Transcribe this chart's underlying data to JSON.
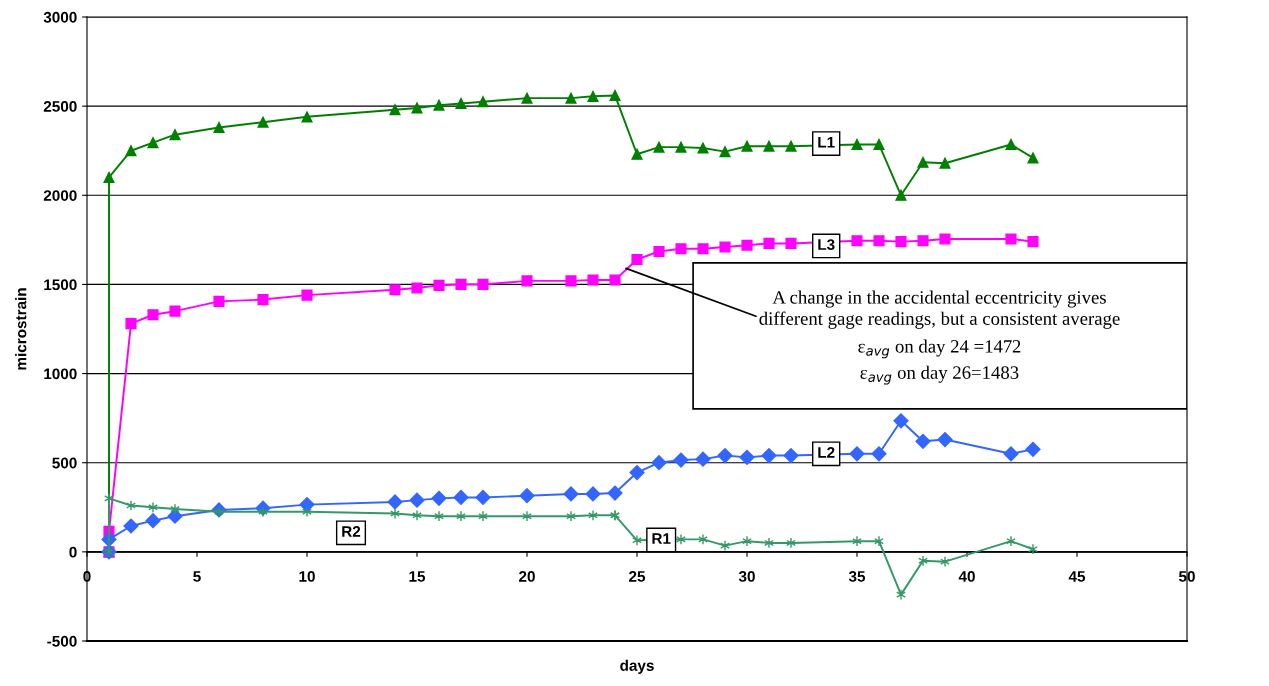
{
  "chart_data": {
    "type": "line",
    "xlabel": "days",
    "ylabel": "microstrain",
    "xlim": [
      0,
      50
    ],
    "xticks": [
      0,
      5,
      10,
      15,
      20,
      25,
      30,
      35,
      40,
      45,
      50
    ],
    "ylim": [
      -500,
      3000
    ],
    "yticks": [
      -500,
      0,
      500,
      1000,
      1500,
      2000,
      2500,
      3000
    ],
    "grid": "y",
    "legend": false,
    "series": [
      {
        "name": "L1",
        "color": "#008000",
        "marker": "triangle",
        "x": [
          1,
          1,
          2,
          3,
          4,
          6,
          8,
          10,
          14,
          15,
          16,
          17,
          18,
          20,
          22,
          23,
          24,
          25,
          26,
          27,
          28,
          29,
          30,
          31,
          32,
          35,
          36,
          37,
          38,
          39,
          42,
          43
        ],
        "values": [
          0,
          2100,
          2250,
          2295,
          2340,
          2380,
          2410,
          2440,
          2480,
          2490,
          2505,
          2515,
          2525,
          2545,
          2545,
          2555,
          2560,
          2230,
          2270,
          2270,
          2265,
          2245,
          2275,
          2275,
          2275,
          2285,
          2285,
          2000,
          2185,
          2180,
          2285,
          2210
        ]
      },
      {
        "name": "L3",
        "color": "#ff00ff",
        "marker": "square",
        "x": [
          1,
          1,
          2,
          3,
          4,
          6,
          8,
          10,
          14,
          15,
          16,
          17,
          18,
          20,
          22,
          23,
          24,
          25,
          26,
          27,
          28,
          29,
          30,
          31,
          32,
          35,
          36,
          37,
          38,
          39,
          42,
          43
        ],
        "values": [
          0,
          115,
          1280,
          1330,
          1350,
          1405,
          1415,
          1440,
          1470,
          1480,
          1495,
          1500,
          1500,
          1520,
          1520,
          1525,
          1525,
          1640,
          1685,
          1700,
          1700,
          1710,
          1720,
          1730,
          1730,
          1745,
          1745,
          1740,
          1745,
          1755,
          1755,
          1740
        ]
      },
      {
        "name": "L2",
        "color": "#3366ff",
        "marker": "diamond",
        "x": [
          1,
          1,
          2,
          3,
          4,
          6,
          8,
          10,
          14,
          15,
          16,
          17,
          18,
          20,
          22,
          23,
          24,
          25,
          26,
          27,
          28,
          29,
          30,
          31,
          32,
          35,
          36,
          37,
          38,
          39,
          42,
          43
        ],
        "values": [
          0,
          70,
          145,
          175,
          200,
          235,
          245,
          265,
          280,
          290,
          300,
          305,
          305,
          315,
          325,
          325,
          330,
          445,
          500,
          515,
          520,
          540,
          530,
          540,
          540,
          550,
          550,
          735,
          620,
          630,
          550,
          575
        ]
      },
      {
        "name": "R2",
        "color": "#339966",
        "marker": "cross",
        "x": [
          1,
          1,
          2,
          3,
          4,
          6,
          8,
          10,
          14,
          15,
          16,
          17,
          18,
          20,
          22,
          23,
          24
        ],
        "values": [
          0,
          300,
          260,
          250,
          240,
          225,
          225,
          225,
          215,
          205,
          200,
          200,
          200,
          200,
          200,
          205,
          205
        ]
      },
      {
        "name": "R1",
        "color": "#339966",
        "marker": "cross",
        "x": [
          24,
          25,
          27,
          28,
          29,
          30,
          31,
          32,
          35,
          36,
          37,
          38,
          39,
          42,
          43
        ],
        "values": [
          205,
          65,
          70,
          70,
          35,
          60,
          50,
          50,
          60,
          60,
          -240,
          -50,
          -55,
          60,
          15
        ]
      }
    ],
    "annotations": [
      {
        "text": "A change in the accidental eccentricity gives\ndifferent gage readings, but a consistent average",
        "x": 24.5,
        "y": 1590
      },
      "ε$_{avg}$ on day 24 =1472",
      "ε$_{avg}$ on day 26=1483"
    ]
  }
}
